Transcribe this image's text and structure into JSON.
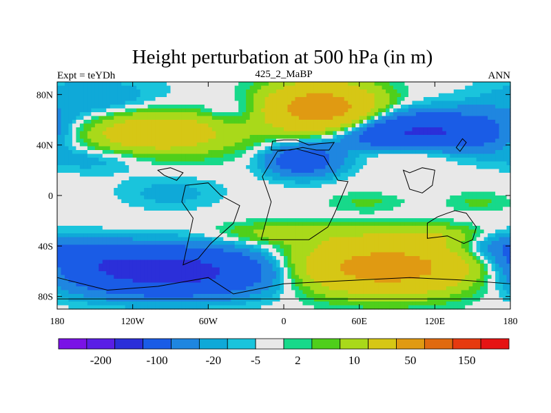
{
  "chart_data": {
    "type": "heatmap",
    "title": "Height perturbation at 500 hPa (in m)",
    "left_label": "Expt = teYDh",
    "center_label": "425_2_MaBP",
    "right_label": "ANN",
    "x_ticks": [
      "180",
      "120W",
      "60W",
      "0",
      "60E",
      "120E",
      "180"
    ],
    "x_tick_values": [
      -180,
      -120,
      -60,
      0,
      60,
      120,
      180
    ],
    "y_ticks": [
      "80N",
      "40N",
      "0",
      "40S",
      "80S"
    ],
    "y_tick_values": [
      80,
      40,
      0,
      -40,
      -80
    ],
    "xlim": [
      -180,
      180
    ],
    "ylim": [
      -90,
      90
    ],
    "colorbar": {
      "labels": [
        "-200",
        "-100",
        "-20",
        "-5",
        "2",
        "10",
        "50",
        "150"
      ],
      "colors": [
        "#7a12e6",
        "#5a1ee6",
        "#2b2fd9",
        "#1a5ce6",
        "#1f86e0",
        "#0fa9d8",
        "#1ac4dc",
        "#e8e8e8",
        "#17d98a",
        "#4fcf1b",
        "#a9d91a",
        "#d6c715",
        "#e09a12",
        "#e06a10",
        "#e63a10",
        "#e61414"
      ]
    },
    "fields": [
      {
        "lon": -110,
        "lat": 50,
        "amp": 40,
        "sx": 50,
        "sy": 12
      },
      {
        "lon": 30,
        "lat": 68,
        "amp": 75,
        "sx": 30,
        "sy": 14
      },
      {
        "lon": 110,
        "lat": 50,
        "amp": -55,
        "sx": 55,
        "sy": 11
      },
      {
        "lon": 15,
        "lat": 28,
        "amp": -35,
        "sx": 20,
        "sy": 9
      },
      {
        "lon": -150,
        "lat": 72,
        "amp": -12,
        "sx": 40,
        "sy": 14
      },
      {
        "lon": -40,
        "lat": 66,
        "amp": -9,
        "sx": 18,
        "sy": 8
      },
      {
        "lon": 100,
        "lat": 34,
        "amp": 14,
        "sx": 28,
        "sy": 6
      },
      {
        "lon": -150,
        "lat": 30,
        "amp": -10,
        "sx": 30,
        "sy": 8
      },
      {
        "lon": -90,
        "lat": 2,
        "amp": -7,
        "sx": 28,
        "sy": 9
      },
      {
        "lon": 65,
        "lat": -5,
        "amp": 6,
        "sx": 20,
        "sy": 5
      },
      {
        "lon": 155,
        "lat": -5,
        "amp": 6,
        "sx": 18,
        "sy": 5
      },
      {
        "lon": 0,
        "lat": -30,
        "amp": 14,
        "sx": 35,
        "sy": 6
      },
      {
        "lon": 120,
        "lat": -32,
        "amp": 14,
        "sx": 40,
        "sy": 6
      },
      {
        "lon": -90,
        "lat": -60,
        "amp": -65,
        "sx": 65,
        "sy": 13
      },
      {
        "lon": 80,
        "lat": -57,
        "amp": 70,
        "sx": 55,
        "sy": 14
      },
      {
        "lon": -150,
        "lat": -50,
        "amp": -14,
        "sx": 25,
        "sy": 9
      },
      {
        "lon": 170,
        "lat": -40,
        "amp": -20,
        "sx": 25,
        "sy": 9
      }
    ]
  }
}
